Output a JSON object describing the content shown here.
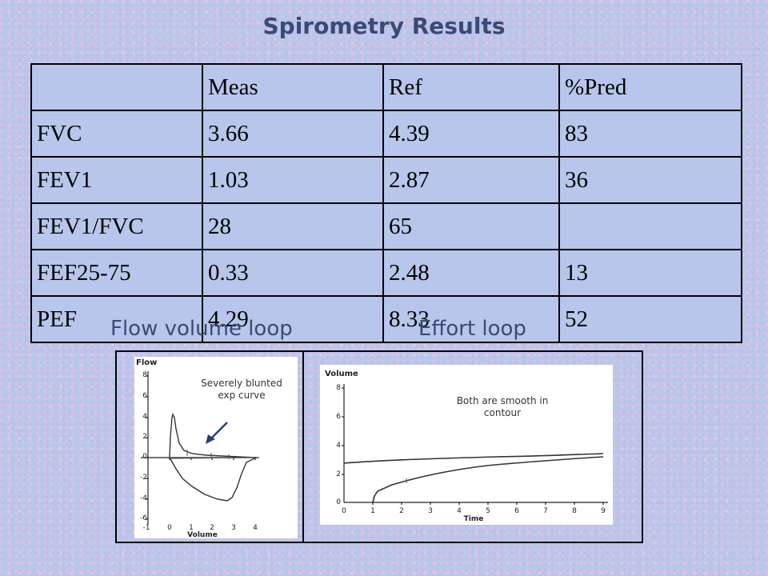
{
  "title": "Spirometry Results",
  "table": {
    "headers": [
      "",
      "Meas",
      "Ref",
      "%Pred"
    ],
    "rows": [
      [
        "FVC",
        "3.66",
        "4.39",
        "83"
      ],
      [
        "FEV1",
        "1.03",
        "2.87",
        "36"
      ],
      [
        "FEV1/FVC",
        "28",
        "65",
        ""
      ],
      [
        "FEF25-75",
        "0.33",
        "2.48",
        "13"
      ],
      [
        "PEF",
        "4.29",
        "8.33",
        "52"
      ]
    ]
  },
  "flow_volume": {
    "heading": "Flow volume loop",
    "y_axis_label": "Flow",
    "x_axis_label": "Volume",
    "y_ticks": [
      "8",
      "6",
      "4",
      "2",
      "0",
      "-2",
      "-4",
      "-6"
    ],
    "x_ticks": [
      "-1",
      "0",
      "1",
      "2",
      "3",
      "4"
    ],
    "annotation_line1": "Severely blunted",
    "annotation_line2": "exp curve"
  },
  "effort": {
    "heading": "Effort loop",
    "y_axis_label": "Volume",
    "x_axis_label": "Time",
    "y_ticks": [
      "8",
      "6",
      "4",
      "2",
      "0"
    ],
    "x_ticks": [
      "0",
      "1",
      "2",
      "3",
      "4",
      "5",
      "6",
      "7",
      "8",
      "9"
    ],
    "annotation_line1": "Both are smooth in",
    "annotation_line2": "contour"
  }
}
